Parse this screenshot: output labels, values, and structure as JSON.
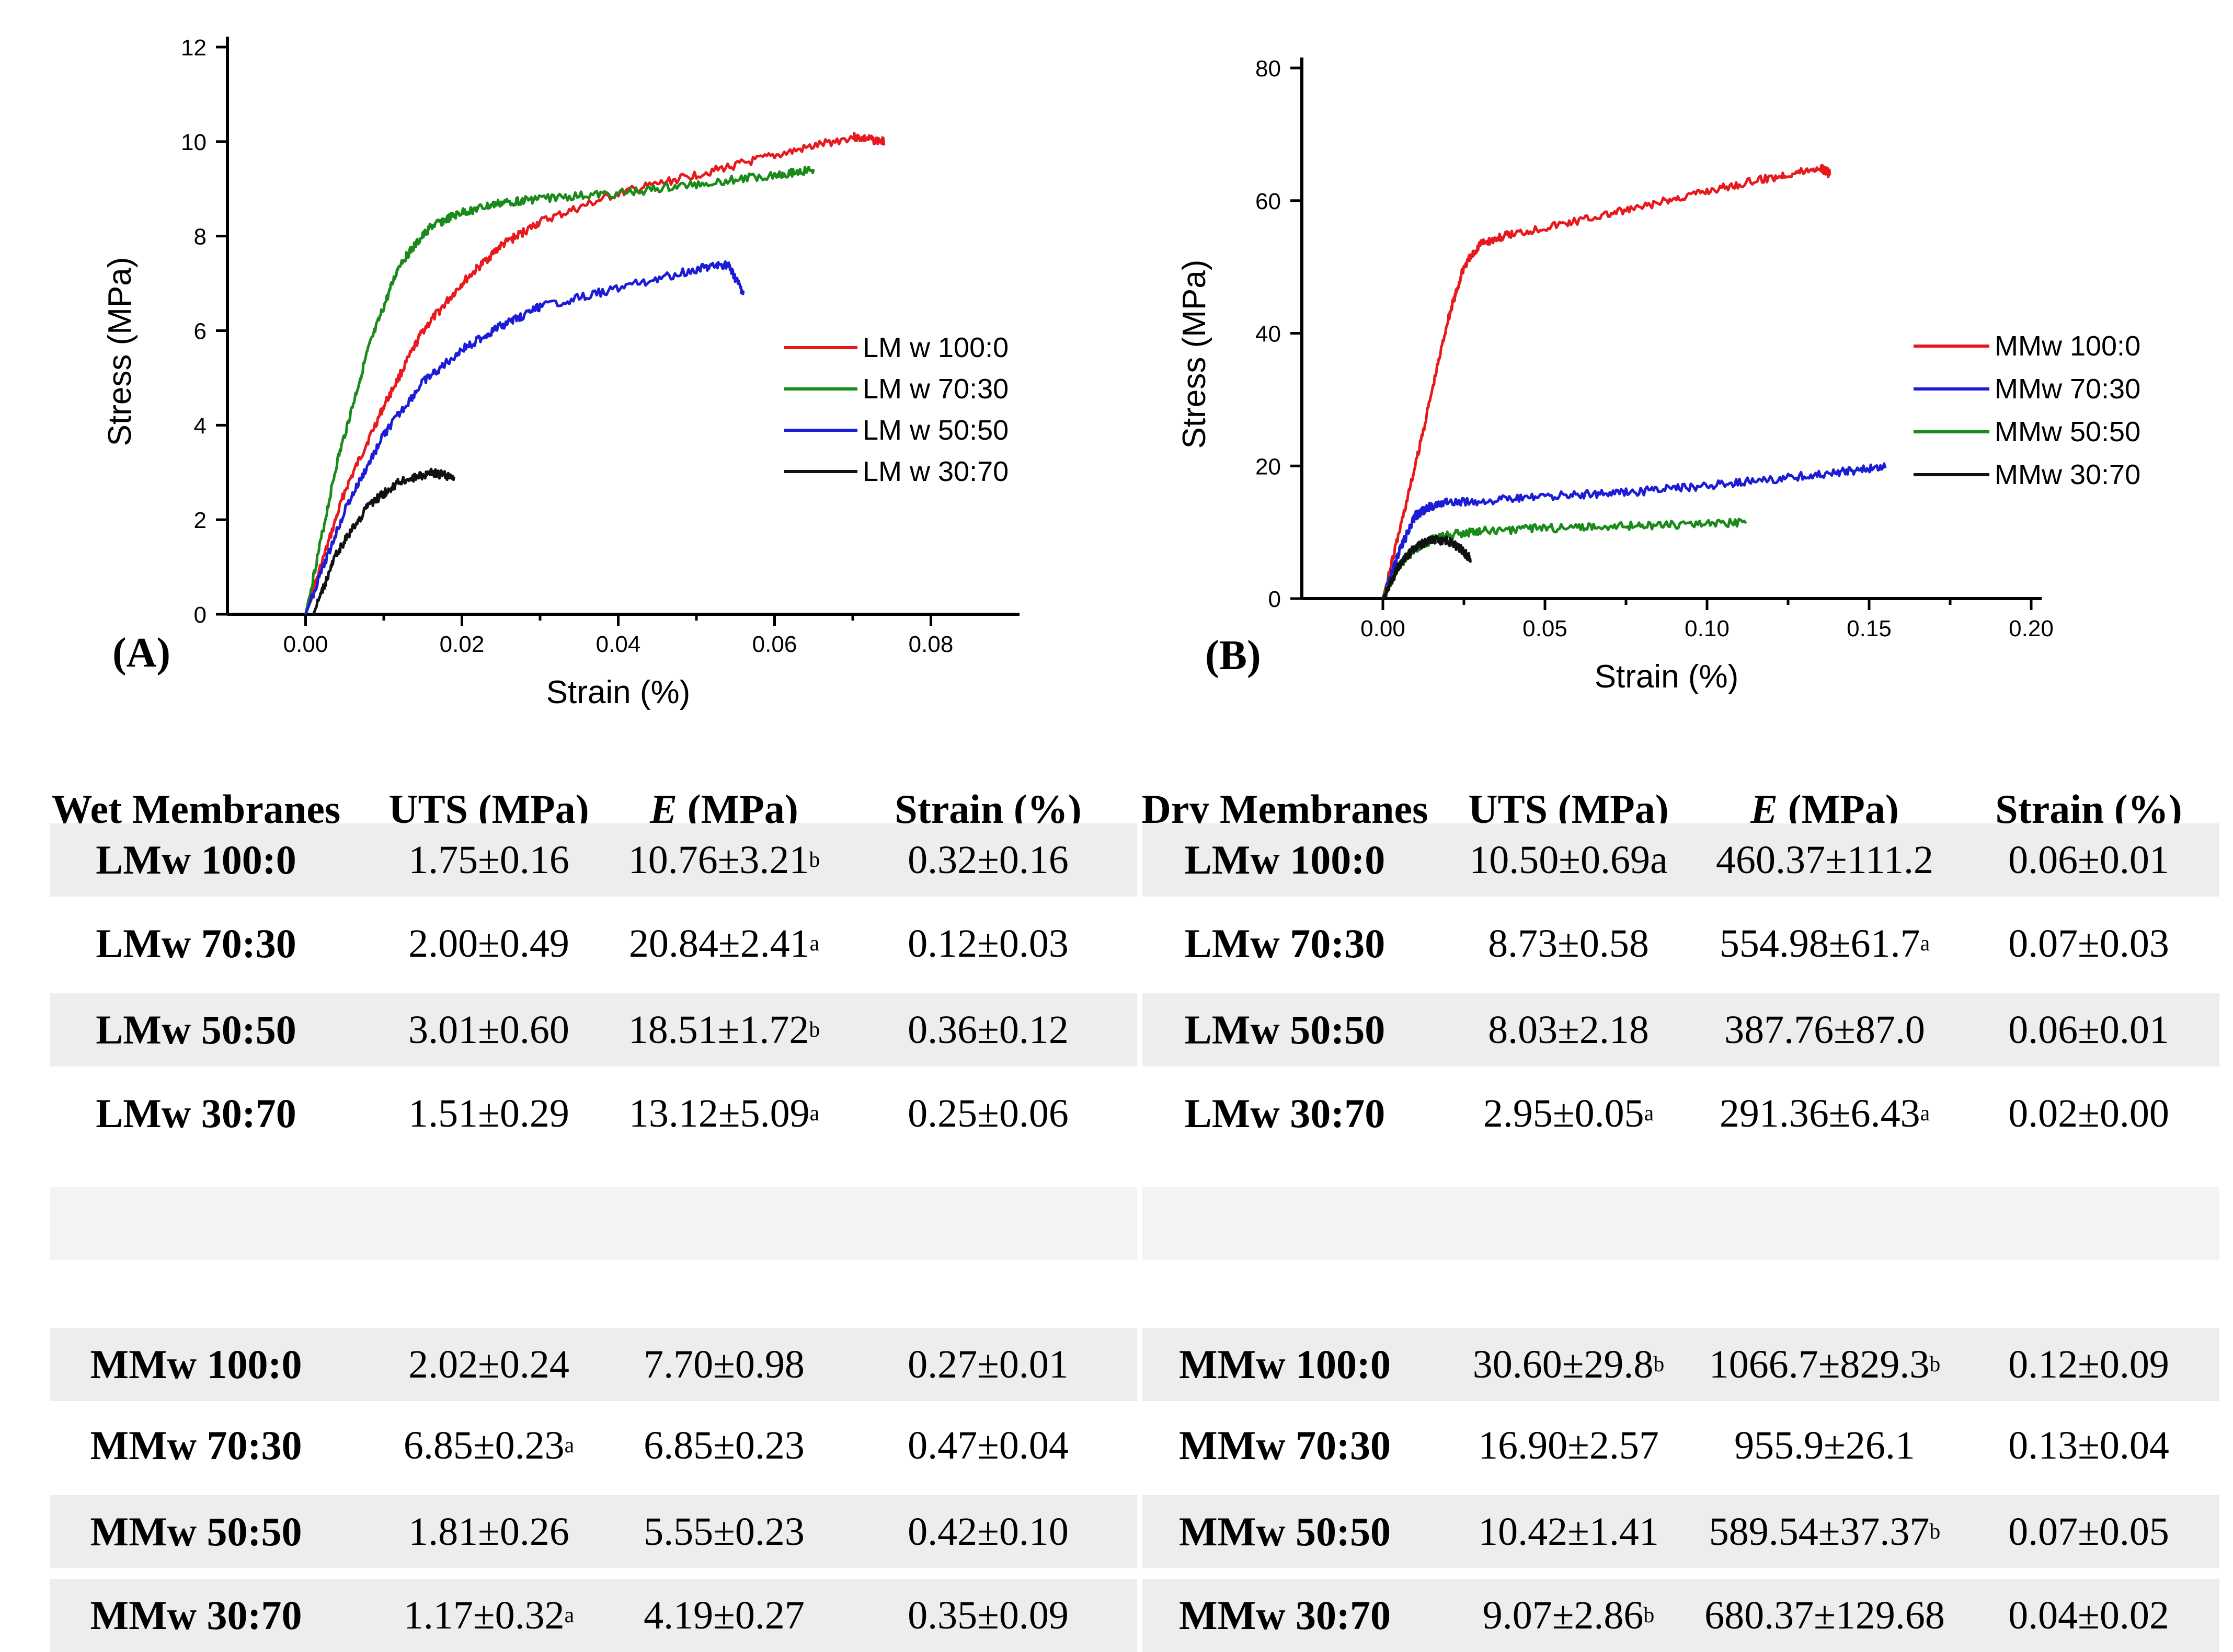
{
  "chart_data": [
    {
      "type": "line",
      "panel_label": "(A)",
      "xlabel": "Strain (%)",
      "ylabel": "Stress (MPa)",
      "xlim": [
        -0.01,
        0.09
      ],
      "ylim": [
        0,
        12
      ],
      "xticks": [
        "0.00",
        "0.02",
        "0.04",
        "0.06",
        "0.08"
      ],
      "xtick_values": [
        0,
        0.02,
        0.04,
        0.06,
        0.08
      ],
      "yticks": [
        "0",
        "2",
        "4",
        "6",
        "8",
        "10",
        "12"
      ],
      "ytick_values": [
        0,
        2,
        4,
        6,
        8,
        10,
        12
      ],
      "legend_position": "right",
      "series": [
        {
          "name": "LM w 100:0",
          "color": "#e8191c",
          "x": [
            0.0,
            0.005,
            0.01,
            0.015,
            0.02,
            0.025,
            0.03,
            0.04,
            0.05,
            0.06,
            0.07,
            0.074
          ],
          "y": [
            0.0,
            2.6,
            4.4,
            6.0,
            7.0,
            7.8,
            8.3,
            8.9,
            9.3,
            9.7,
            10.1,
            10.0
          ]
        },
        {
          "name": "LM w 70:30",
          "color": "#1a8a1a",
          "x": [
            0.0,
            0.004,
            0.008,
            0.012,
            0.016,
            0.02,
            0.025,
            0.03,
            0.04,
            0.05,
            0.06,
            0.065
          ],
          "y": [
            0.0,
            3.2,
            5.6,
            7.4,
            8.2,
            8.5,
            8.7,
            8.8,
            8.9,
            9.1,
            9.3,
            9.4
          ]
        },
        {
          "name": "LM w 50:50",
          "color": "#1c1cd6",
          "x": [
            0.0,
            0.005,
            0.01,
            0.015,
            0.02,
            0.025,
            0.03,
            0.04,
            0.05,
            0.054,
            0.056
          ],
          "y": [
            0.0,
            2.2,
            3.8,
            4.9,
            5.6,
            6.1,
            6.5,
            6.9,
            7.3,
            7.4,
            6.8
          ]
        },
        {
          "name": "LM w 30:70",
          "color": "#111111",
          "x": [
            0.001,
            0.004,
            0.008,
            0.012,
            0.016,
            0.019
          ],
          "y": [
            0.0,
            1.3,
            2.3,
            2.8,
            3.0,
            2.9
          ]
        }
      ]
    },
    {
      "type": "line",
      "panel_label": "(B)",
      "xlabel": "Strain (%)",
      "ylabel": "Stress (MPa)",
      "xlim": [
        -0.025,
        0.2
      ],
      "ylim": [
        0,
        80
      ],
      "xticks": [
        "0.00",
        "0.05",
        "0.10",
        "0.15",
        "0.20"
      ],
      "xtick_values": [
        0,
        0.05,
        0.1,
        0.15,
        0.2
      ],
      "yticks": [
        "0",
        "20",
        "40",
        "60",
        "80"
      ],
      "ytick_values": [
        0,
        20,
        40,
        60,
        80
      ],
      "legend_position": "right",
      "series": [
        {
          "name": "MMw  100:0",
          "color": "#e8191c",
          "x": [
            0.0,
            0.01,
            0.02,
            0.025,
            0.03,
            0.04,
            0.06,
            0.08,
            0.1,
            0.12,
            0.135,
            0.138
          ],
          "y": [
            0.0,
            20.0,
            42.0,
            50.0,
            53.5,
            55.0,
            57.0,
            59.0,
            61.5,
            63.5,
            65.0,
            64.0
          ]
        },
        {
          "name": "MMw  70:30",
          "color": "#1c1cd6",
          "x": [
            0.0,
            0.005,
            0.01,
            0.015,
            0.02,
            0.04,
            0.06,
            0.08,
            0.1,
            0.12,
            0.14,
            0.155
          ],
          "y": [
            0.0,
            7.0,
            12.5,
            14.0,
            14.5,
            15.0,
            15.7,
            16.2,
            17.0,
            18.0,
            19.0,
            20.0
          ]
        },
        {
          "name": "MMw  50:50",
          "color": "#1a8a1a",
          "x": [
            0.0,
            0.005,
            0.01,
            0.015,
            0.02,
            0.03,
            0.05,
            0.07,
            0.09,
            0.112
          ],
          "y": [
            0.0,
            5.0,
            7.5,
            8.8,
            9.5,
            10.2,
            10.6,
            10.9,
            11.2,
            11.5
          ]
        },
        {
          "name": "MMw  30:70",
          "color": "#111111",
          "x": [
            0.0,
            0.005,
            0.01,
            0.015,
            0.02,
            0.024,
            0.027
          ],
          "y": [
            0.0,
            5.0,
            7.8,
            8.9,
            8.7,
            7.5,
            6.0
          ]
        }
      ]
    }
  ],
  "tables": {
    "wet": {
      "headers": {
        "name": "Wet Membranes",
        "uts": "UTS (MPa)",
        "e_italic": "E",
        "e_unit": " (MPa)",
        "strain": "Strain (%)"
      },
      "rows": [
        {
          "name": "LMw 100:0",
          "uts": "1.75±0.16",
          "uts_sup": "",
          "e": "10.76±3.21",
          "e_sup": "b",
          "strain": "0.32±0.16"
        },
        {
          "name": "LMw 70:30",
          "uts": "2.00±0.49",
          "uts_sup": "",
          "e": "20.84±2.41",
          "e_sup": "a",
          "strain": "0.12±0.03"
        },
        {
          "name": "LMw 50:50",
          "uts": "3.01±0.60",
          "uts_sup": "",
          "e": "18.51±1.72",
          "e_sup": "b",
          "strain": "0.36±0.12"
        },
        {
          "name": "LMw 30:70",
          "uts": "1.51±0.29",
          "uts_sup": "",
          "e": "13.12±5.09",
          "e_sup": "a",
          "strain": "0.25±0.06"
        },
        {
          "name": "MMw 100:0",
          "uts": "2.02±0.24",
          "uts_sup": "",
          "e": "7.70±0.98",
          "e_sup": "",
          "strain": "0.27±0.01"
        },
        {
          "name": "MMw 70:30",
          "uts": "6.85±0.23",
          "uts_sup": "a",
          "e": "6.85±0.23",
          "e_sup": "",
          "strain": "0.47±0.04"
        },
        {
          "name": "MMw 50:50",
          "uts": "1.81±0.26",
          "uts_sup": "",
          "e": "5.55±0.23",
          "e_sup": "",
          "strain": "0.42±0.10"
        },
        {
          "name": "MMw 30:70",
          "uts": "1.17±0.32",
          "uts_sup": "a",
          "e": "4.19±0.27",
          "e_sup": "",
          "strain": "0.35±0.09"
        }
      ]
    },
    "dry": {
      "headers": {
        "name": "Dry Membranes",
        "uts": "UTS (MPa)",
        "e_italic": "E",
        "e_unit": " (MPa)",
        "strain": "Strain (%)"
      },
      "rows": [
        {
          "name": "LMw 100:0",
          "uts": "10.50±0.69a",
          "uts_sup": "",
          "e": "460.37±111.2",
          "e_sup": "",
          "strain": "0.06±0.01"
        },
        {
          "name": "LMw 70:30",
          "uts": "8.73±0.58",
          "uts_sup": "",
          "e": "554.98±61.7",
          "e_sup": "a",
          "strain": "0.07±0.03"
        },
        {
          "name": "LMw 50:50",
          "uts": "8.03±2.18",
          "uts_sup": "",
          "e": "387.76±87.0",
          "e_sup": "",
          "strain": "0.06±0.01"
        },
        {
          "name": "LMw 30:70",
          "uts": "2.95±0.05",
          "uts_sup": "a",
          "e": "291.36±6.43",
          "e_sup": "a",
          "strain": "0.02±0.00"
        },
        {
          "name": "MMw 100:0",
          "uts": "30.60±29.8",
          "uts_sup": "b",
          "e": "1066.7±829.3",
          "e_sup": "b",
          "strain": "0.12±0.09"
        },
        {
          "name": "MMw 70:30",
          "uts": "16.90±2.57",
          "uts_sup": "",
          "e": "955.9±26.1",
          "e_sup": "",
          "strain": "0.13±0.04"
        },
        {
          "name": "MMw 50:50",
          "uts": "10.42±1.41",
          "uts_sup": "",
          "e": "589.54±37.37",
          "e_sup": "b",
          "strain": "0.07±0.05"
        },
        {
          "name": "MMw 30:70",
          "uts": "9.07±2.86",
          "uts_sup": "b",
          "e": "680.37±129.68",
          "e_sup": "",
          "strain": "0.04±0.02"
        }
      ]
    }
  }
}
